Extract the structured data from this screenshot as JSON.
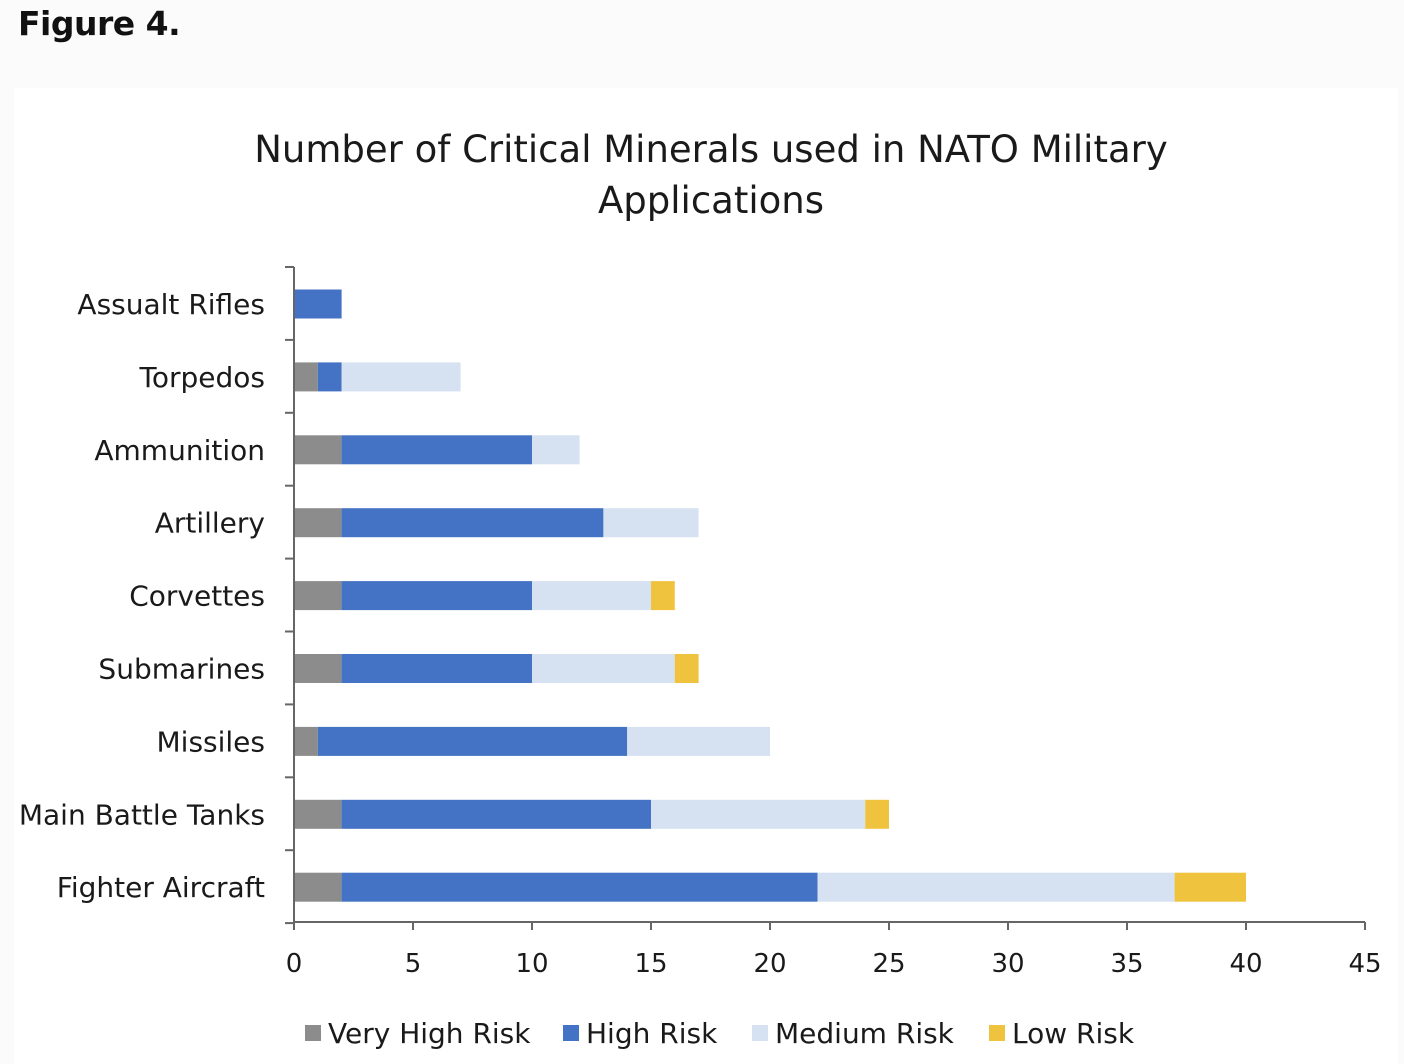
{
  "figure": {
    "label": "Figure 4."
  },
  "colors": {
    "very_high": "#8c8c8c",
    "high": "#4472c4",
    "medium": "#d6e2f1",
    "low": "#f0c33f",
    "axis": "#666666"
  },
  "chart_data": {
    "type": "bar",
    "orientation": "horizontal",
    "stacked": true,
    "title_lines": [
      "Number of Critical Minerals used in NATO Military",
      "Applications"
    ],
    "categories": [
      "Assualt Rifles",
      "Torpedos",
      "Ammunition",
      "Artillery",
      "Corvettes",
      "Submarines",
      "Missiles",
      "Main Battle Tanks",
      "Fighter Aircraft"
    ],
    "series": [
      {
        "name": "Very High Risk",
        "key": "very_high",
        "values": [
          0,
          1,
          2,
          2,
          2,
          2,
          1,
          2,
          2
        ]
      },
      {
        "name": "High Risk",
        "key": "high",
        "values": [
          2,
          1,
          8,
          11,
          8,
          8,
          13,
          13,
          20
        ]
      },
      {
        "name": "Medium Risk",
        "key": "medium",
        "values": [
          0,
          5,
          2,
          4,
          5,
          6,
          6,
          9,
          15
        ]
      },
      {
        "name": "Low Risk",
        "key": "low",
        "values": [
          0,
          0,
          0,
          0,
          1,
          1,
          0,
          1,
          3
        ]
      }
    ],
    "xlim": [
      0,
      45
    ],
    "xticks": [
      0,
      5,
      10,
      15,
      20,
      25,
      30,
      35,
      40,
      45
    ],
    "xlabel": "",
    "ylabel": "",
    "grid": false,
    "legend_position": "bottom"
  }
}
